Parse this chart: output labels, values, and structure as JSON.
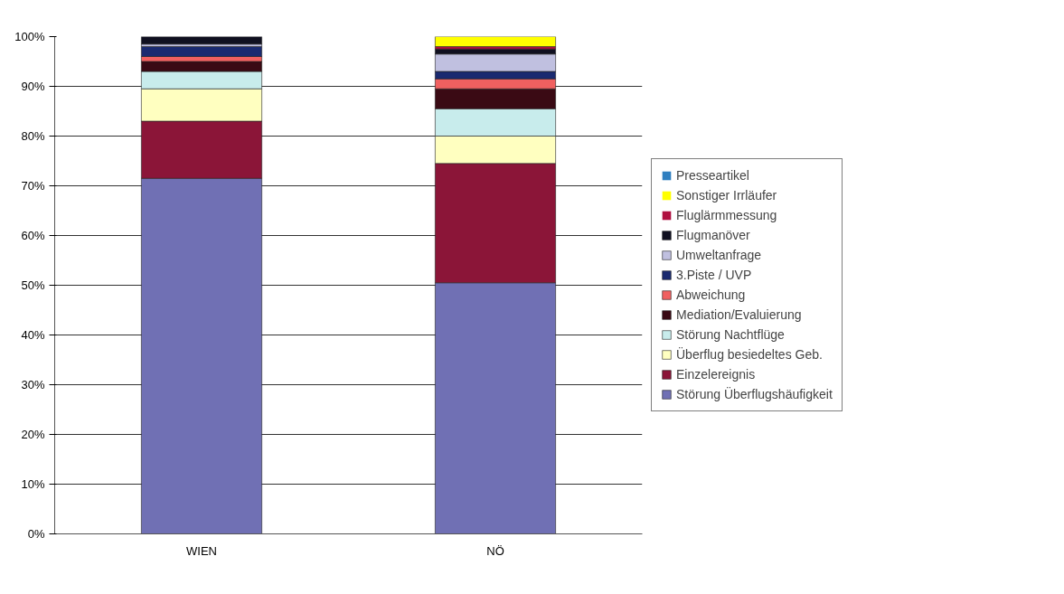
{
  "chart_data": {
    "type": "bar",
    "stacked": true,
    "categories": [
      "WIEN",
      "NÖ"
    ],
    "series": [
      {
        "name": "Störung Überflugshäufigkeit",
        "color": "#7070b4",
        "values": [
          71.5,
          50.5
        ]
      },
      {
        "name": "Einzelereignis",
        "color": "#8b1538",
        "values": [
          11.5,
          24
        ]
      },
      {
        "name": "Überflug besiedeltes Geb.",
        "color": "#ffffc0",
        "values": [
          6.5,
          5.5
        ]
      },
      {
        "name": "Störung Nachtflüge",
        "color": "#c8ecec",
        "values": [
          3.5,
          5.5
        ]
      },
      {
        "name": "Mediation/Evaluierung",
        "color": "#3a0a14",
        "values": [
          2,
          4
        ]
      },
      {
        "name": "Abweichung",
        "color": "#f06060",
        "values": [
          1,
          2
        ]
      },
      {
        "name": "3.Piste / UVP",
        "color": "#1a2a70",
        "values": [
          2,
          1.5
        ]
      },
      {
        "name": "Umweltanfrage",
        "color": "#c0c0e0",
        "values": [
          0.5,
          3.5
        ]
      },
      {
        "name": "Flugmanöver",
        "color": "#101020",
        "values": [
          1.5,
          1
        ]
      },
      {
        "name": "Fluglärmmessung",
        "color": "#b01040",
        "values": [
          0,
          0.5
        ]
      },
      {
        "name": "Sonstiger Irrläufer",
        "color": "#ffff00",
        "values": [
          0,
          2
        ]
      },
      {
        "name": "Presseartikel",
        "color": "#2f7fc0",
        "values": [
          0,
          0
        ]
      }
    ],
    "ylim": [
      0,
      100
    ],
    "yticks": [
      {
        "value": 0,
        "label": "0%"
      },
      {
        "value": 10,
        "label": "10%"
      },
      {
        "value": 20,
        "label": "20%"
      },
      {
        "value": 30,
        "label": "30%"
      },
      {
        "value": 40,
        "label": "40%"
      },
      {
        "value": 50,
        "label": "50%"
      },
      {
        "value": 60,
        "label": "60%"
      },
      {
        "value": 70,
        "label": "70%"
      },
      {
        "value": 80,
        "label": "80%"
      },
      {
        "value": 90,
        "label": "90%"
      },
      {
        "value": 100,
        "label": "100%"
      }
    ],
    "grid": "y",
    "legend": "right"
  }
}
